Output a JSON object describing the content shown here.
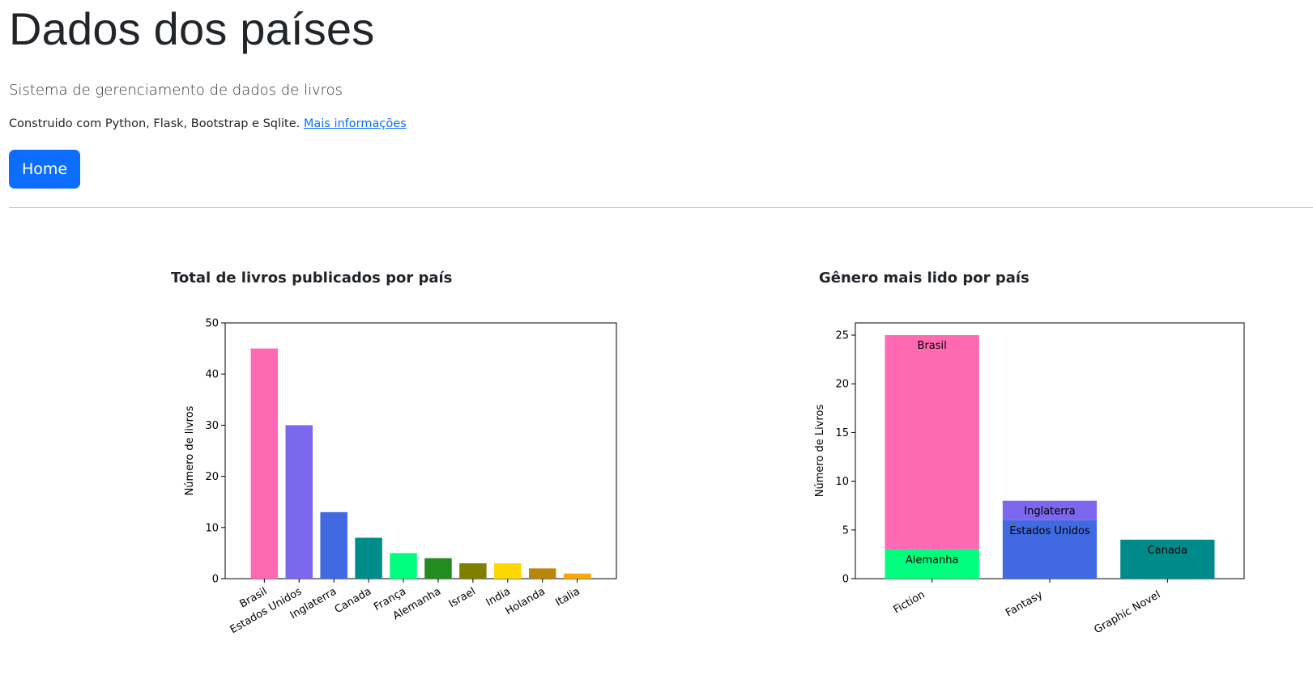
{
  "header": {
    "title": "Dados dos países",
    "lead": "Sistema de gerenciamento de dados de livros",
    "built_text": "Construido com Python, Flask, Bootstrap e Sqlite.",
    "more_info_link": "Mais informações",
    "home_button": "Home"
  },
  "colors": {
    "primary": "#0d6efd",
    "hotpink": "#ff69b4",
    "mediumslateblue": "#7b68ee",
    "royalblue": "#4169e1",
    "darkcyan": "#008b8b",
    "springgreen": "#00ff7f",
    "forestgreen": "#228b22",
    "olive": "#808000",
    "gold": "#ffd700",
    "darkgoldenrod": "#b8860b",
    "orange": "#ffa500"
  },
  "chart_data": [
    {
      "type": "bar",
      "title": "Total de livros publicados por país",
      "ylabel": "Número de livros",
      "xlabel": "",
      "categories": [
        "Brasil",
        "Estados Unidos",
        "Inglaterra",
        "Canada",
        "França",
        "Alemanha",
        "Israel",
        "India",
        "Holanda",
        "Italia"
      ],
      "values": [
        45,
        30,
        13,
        8,
        5,
        4,
        3,
        3,
        2,
        1
      ],
      "colors": [
        "#ff69b4",
        "#7b68ee",
        "#4169e1",
        "#008b8b",
        "#00ff7f",
        "#228b22",
        "#808000",
        "#ffd700",
        "#b8860b",
        "#ffa500"
      ],
      "ylim": [
        0,
        50
      ],
      "yticks": [
        0,
        10,
        20,
        30,
        40,
        50
      ],
      "grid": false
    },
    {
      "type": "bar",
      "stacked": true,
      "title": "Gênero mais lido por país",
      "ylabel": "Número de Livros",
      "xlabel": "",
      "categories": [
        "Fiction",
        "Fantasy",
        "Graphic Novel"
      ],
      "ylim": [
        0,
        26.25
      ],
      "yticks": [
        0,
        5,
        10,
        15,
        20,
        25
      ],
      "grid": false,
      "segments": [
        {
          "category": "Fiction",
          "country": "Alemanha",
          "bottom": 0,
          "value": 3,
          "color": "#00ff7f"
        },
        {
          "category": "Fiction",
          "country": "Brasil",
          "bottom": 3,
          "value": 22,
          "color": "#ff69b4"
        },
        {
          "category": "Fantasy",
          "country": "Estados Unidos",
          "bottom": 0,
          "value": 6,
          "color": "#4169e1"
        },
        {
          "category": "Fantasy",
          "country": "Inglaterra",
          "bottom": 6,
          "value": 2,
          "color": "#7b68ee"
        },
        {
          "category": "Graphic Novel",
          "country": "Canada",
          "bottom": 0,
          "value": 4,
          "color": "#008b8b"
        }
      ]
    }
  ]
}
